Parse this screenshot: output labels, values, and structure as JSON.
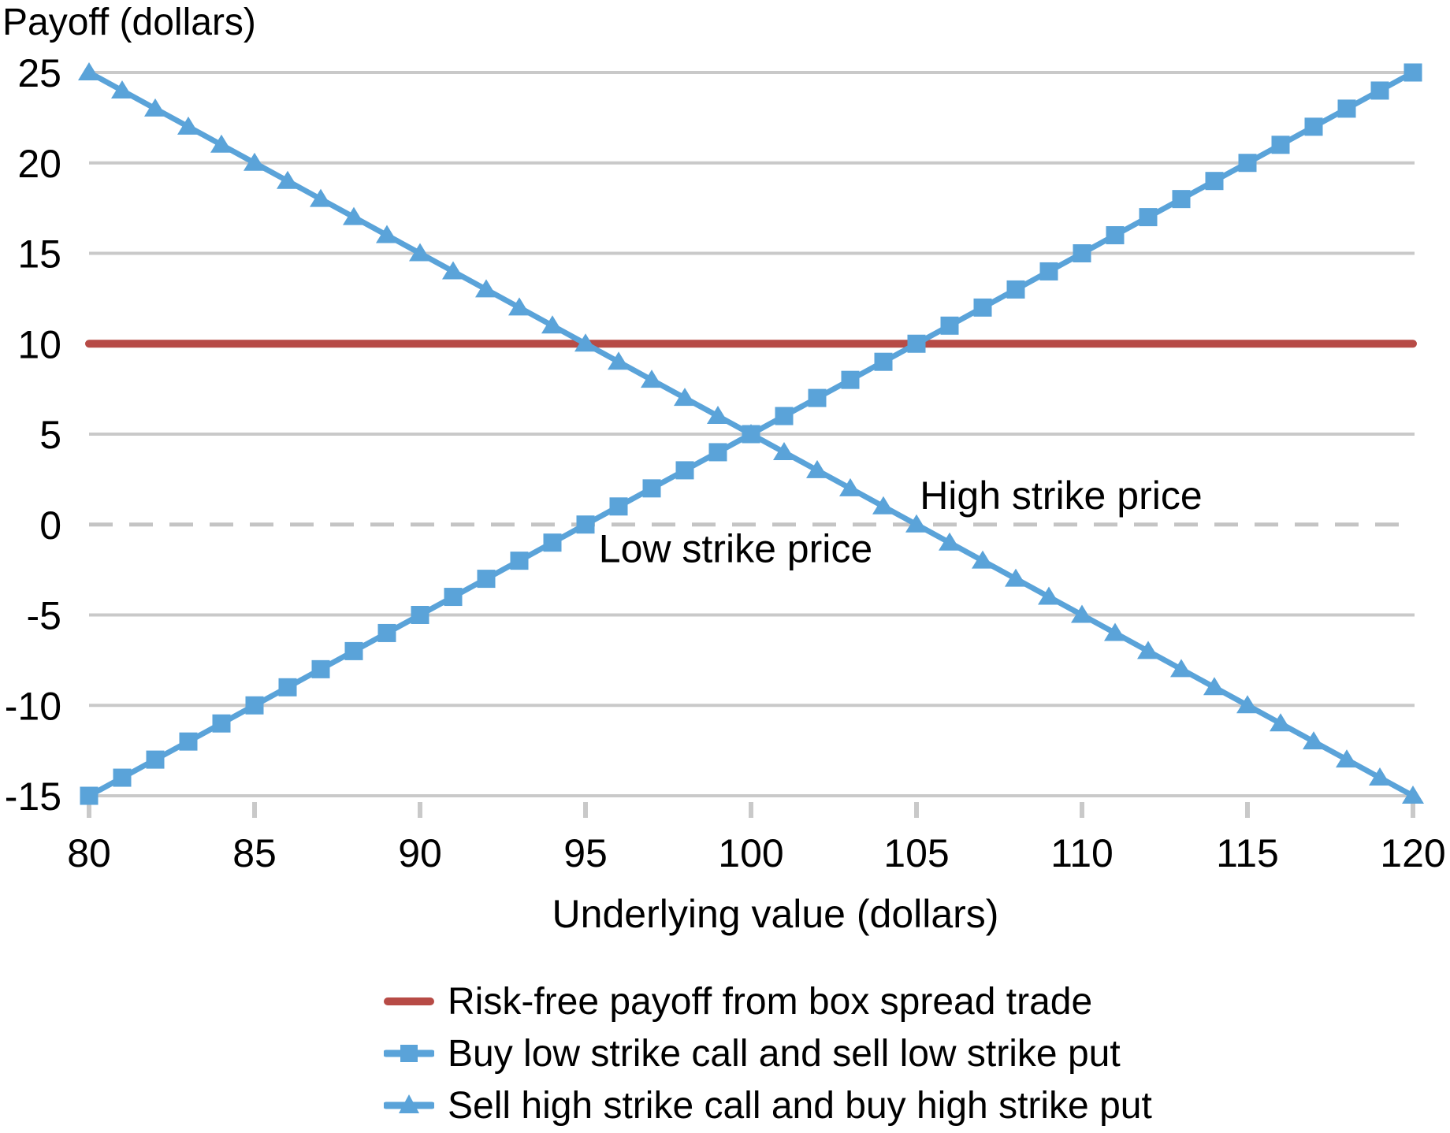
{
  "chart_data": {
    "type": "line",
    "title": "",
    "ylabel": "Payoff (dollars)",
    "xlabel": "Underlying value (dollars)",
    "xlim": [
      80,
      120
    ],
    "ylim": [
      -15,
      25
    ],
    "xticks": [
      80,
      85,
      90,
      95,
      100,
      105,
      110,
      115,
      120
    ],
    "yticks": [
      -15,
      -10,
      -5,
      0,
      5,
      10,
      15,
      20,
      25
    ],
    "grid": "horizontal gridlines every 5, zero line dashed, x ticks below axis",
    "legend_position": "bottom",
    "series": [
      {
        "name": "Risk-free payoff from box spread trade",
        "color": "#b74b46",
        "marker": "none",
        "x": [
          80,
          120
        ],
        "y": [
          10,
          10
        ]
      },
      {
        "name": "Buy low strike call and sell low strike put",
        "color": "#5aa3d9",
        "marker": "square",
        "x": [
          80,
          81,
          82,
          83,
          84,
          85,
          86,
          87,
          88,
          89,
          90,
          91,
          92,
          93,
          94,
          95,
          96,
          97,
          98,
          99,
          100,
          101,
          102,
          103,
          104,
          105,
          106,
          107,
          108,
          109,
          110,
          111,
          112,
          113,
          114,
          115,
          116,
          117,
          118,
          119,
          120
        ],
        "y": [
          -15,
          -14,
          -13,
          -12,
          -11,
          -10,
          -9,
          -8,
          -7,
          -6,
          -5,
          -4,
          -3,
          -2,
          -1,
          0,
          1,
          2,
          3,
          4,
          5,
          6,
          7,
          8,
          9,
          10,
          11,
          12,
          13,
          14,
          15,
          16,
          17,
          18,
          19,
          20,
          21,
          22,
          23,
          24,
          25
        ]
      },
      {
        "name": "Sell high strike call and buy high strike put",
        "color": "#5aa3d9",
        "marker": "triangle",
        "x": [
          80,
          81,
          82,
          83,
          84,
          85,
          86,
          87,
          88,
          89,
          90,
          91,
          92,
          93,
          94,
          95,
          96,
          97,
          98,
          99,
          100,
          101,
          102,
          103,
          104,
          105,
          106,
          107,
          108,
          109,
          110,
          111,
          112,
          113,
          114,
          115,
          116,
          117,
          118,
          119,
          120
        ],
        "y": [
          25,
          24,
          23,
          22,
          21,
          20,
          19,
          18,
          17,
          16,
          15,
          14,
          13,
          12,
          11,
          10,
          9,
          8,
          7,
          6,
          5,
          4,
          3,
          2,
          1,
          0,
          -1,
          -2,
          -3,
          -4,
          -5,
          -6,
          -7,
          -8,
          -9,
          -10,
          -11,
          -12,
          -13,
          -14,
          -15
        ]
      }
    ],
    "annotations": [
      {
        "text": "Low strike price",
        "x": 95.4,
        "y": -1.3
      },
      {
        "text": "High strike price",
        "x": 105.1,
        "y": 1.65
      }
    ],
    "colors": {
      "grid": "#c9c9c9",
      "zero_dash": "#c4c4c4",
      "tick": "#c9c9c9",
      "text": "#000000"
    }
  }
}
